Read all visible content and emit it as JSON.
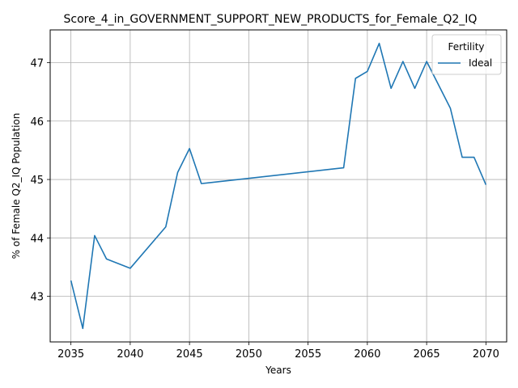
{
  "chart_data": {
    "type": "line",
    "title": "Score_4_in_GOVERNMENT_SUPPORT_NEW_PRODUCTS_for_Female_Q2_IQ",
    "xlabel": "Years",
    "ylabel": "% of Female Q2_IQ Population",
    "xlim": [
      2033.25,
      2071.75
    ],
    "ylim": [
      42.22,
      47.56
    ],
    "xticks": [
      2035,
      2040,
      2045,
      2050,
      2055,
      2060,
      2065,
      2070
    ],
    "yticks": [
      43,
      44,
      45,
      46,
      47
    ],
    "grid": true,
    "legend": {
      "title": "Fertility",
      "placement": "top-right"
    },
    "series": [
      {
        "name": "Ideal",
        "color": "#1f77b4",
        "x": [
          2035,
          2036,
          2037,
          2038,
          2040,
          2043,
          2044,
          2045,
          2046,
          2058,
          2059,
          2060,
          2061,
          2062,
          2063,
          2064,
          2065,
          2067,
          2068,
          2069,
          2070
        ],
        "y": [
          43.27,
          42.45,
          44.04,
          43.64,
          43.48,
          44.19,
          45.12,
          45.53,
          44.93,
          45.2,
          46.73,
          46.85,
          47.33,
          46.56,
          47.02,
          46.56,
          47.02,
          46.22,
          45.38,
          45.38,
          44.91
        ]
      }
    ]
  }
}
